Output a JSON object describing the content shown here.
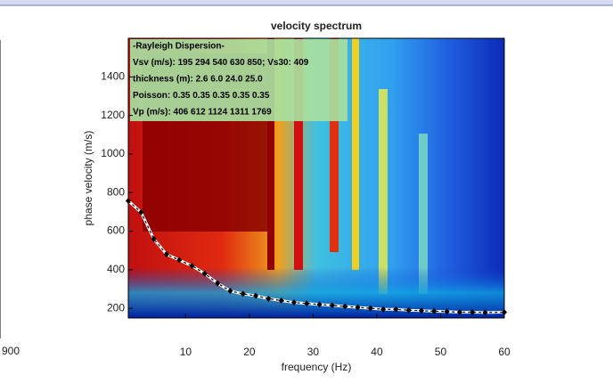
{
  "chart_data": {
    "type": "line",
    "title": "velocity spectrum",
    "x_label": "frequency (Hz)",
    "y_label": "phase velocity (m/s)",
    "xlim": [
      1,
      60
    ],
    "ylim": [
      150,
      1600
    ],
    "xticks": [
      10,
      20,
      30,
      40,
      50,
      60
    ],
    "yticks": [
      200,
      400,
      600,
      800,
      1000,
      1200,
      1400
    ],
    "annotations": [
      "-Rayleigh Dispersion-",
      "Vsv (m/s): 195  294  540  630  850; Vs30: 409",
      "thickness (m): 2.6    6.0   24.0   25.0",
      "Poisson: 0.35  0.35  0.35  0.35  0.35",
      "Vp (m/s): 406   612  1124  1311  1769"
    ],
    "series": [
      {
        "color": "#000000",
        "x": [
          1,
          3,
          5,
          7,
          9,
          11,
          13,
          15,
          17,
          19,
          21,
          23,
          25,
          27,
          29,
          31,
          33,
          35,
          37,
          39,
          41,
          43,
          45,
          47,
          49,
          51,
          53,
          55,
          57,
          60
        ],
        "values": [
          757,
          698,
          560,
          480,
          450,
          420,
          380,
          330,
          290,
          275,
          265,
          250,
          240,
          230,
          225,
          220,
          215,
          210,
          205,
          200,
          195,
          195,
          190,
          188,
          185,
          183,
          180,
          180,
          178,
          180
        ]
      }
    ]
  },
  "left_panel": {
    "tick_label": "900"
  }
}
